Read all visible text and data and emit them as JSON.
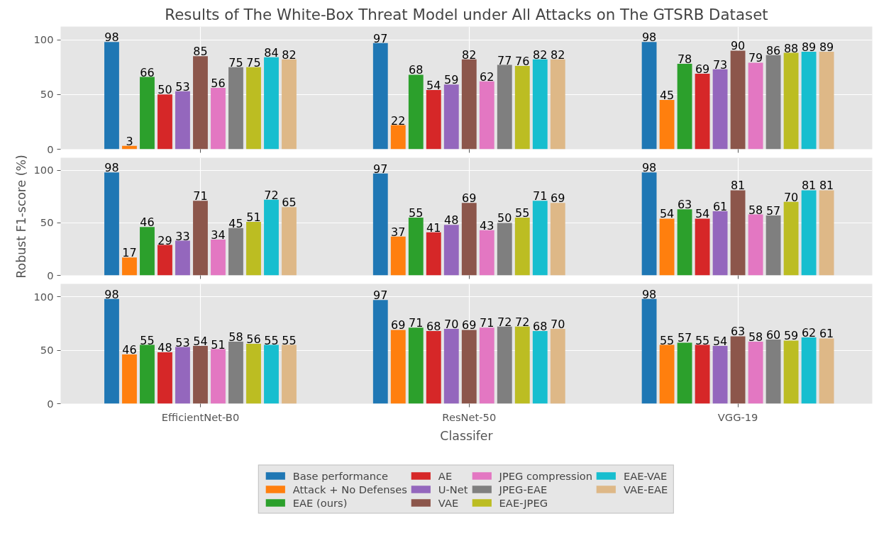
{
  "chart_data": [
    {
      "type": "bar",
      "title": "Results of The White-Box Threat Model under All Attacks on The GTSRB Dataset",
      "categories": [
        null,
        null,
        null
      ],
      "ylim": [
        0,
        112
      ],
      "yticks": [
        0,
        50,
        100
      ],
      "grid": true,
      "tick_labels": "y",
      "data_labels": true,
      "series": [
        {
          "color": "#1f77b4",
          "values": [
            98,
            97,
            98
          ]
        },
        {
          "color": "#ff7f0e",
          "values": [
            3,
            22,
            45
          ]
        },
        {
          "color": "#2ca02c",
          "values": [
            66,
            68,
            78
          ]
        },
        {
          "color": "#d62728",
          "values": [
            50,
            54,
            69
          ]
        },
        {
          "color": "#9467bd",
          "values": [
            53,
            59,
            73
          ]
        },
        {
          "color": "#8c564b",
          "values": [
            85,
            82,
            90
          ]
        },
        {
          "color": "#e377c2",
          "values": [
            56,
            62,
            79
          ]
        },
        {
          "color": "#7f7f7f",
          "values": [
            75,
            77,
            86
          ]
        },
        {
          "color": "#bcbd22",
          "values": [
            75,
            76,
            88
          ]
        },
        {
          "color": "#17becf",
          "values": [
            84,
            82,
            89
          ]
        },
        {
          "color": "#deb887",
          "values": [
            82,
            82,
            89
          ]
        }
      ]
    },
    {
      "type": "bar",
      "ylabel": "Robust F1-score (%)",
      "categories": [
        null,
        null,
        null
      ],
      "ylim": [
        0,
        112
      ],
      "yticks": [
        0,
        50,
        100
      ],
      "grid": true,
      "tick_labels": "y",
      "data_labels": true,
      "series": [
        {
          "color": "#1f77b4",
          "values": [
            98,
            97,
            98
          ]
        },
        {
          "color": "#ff7f0e",
          "values": [
            17,
            37,
            54
          ]
        },
        {
          "color": "#2ca02c",
          "values": [
            46,
            55,
            63
          ]
        },
        {
          "color": "#d62728",
          "values": [
            29,
            41,
            54
          ]
        },
        {
          "color": "#9467bd",
          "values": [
            33,
            48,
            61
          ]
        },
        {
          "color": "#8c564b",
          "values": [
            71,
            69,
            81
          ]
        },
        {
          "color": "#e377c2",
          "values": [
            34,
            43,
            58
          ]
        },
        {
          "color": "#7f7f7f",
          "values": [
            45,
            50,
            57
          ]
        },
        {
          "color": "#bcbd22",
          "values": [
            51,
            55,
            70
          ]
        },
        {
          "color": "#17becf",
          "values": [
            72,
            71,
            81
          ]
        },
        {
          "color": "#deb887",
          "values": [
            65,
            69,
            81
          ]
        }
      ]
    },
    {
      "type": "bar",
      "xlabel": "Classifer",
      "categories": [
        "EfficientNet-B0",
        "ResNet-50",
        "VGG-19"
      ],
      "ylim": [
        0,
        112
      ],
      "yticks": [
        0,
        50,
        100
      ],
      "grid": true,
      "data_labels": true,
      "legend": "bottom",
      "series": [
        {
          "name": "Base performance",
          "color": "#1f77b4",
          "values": [
            98,
            97,
            98
          ]
        },
        {
          "name": "Attack + No Defenses",
          "color": "#ff7f0e",
          "values": [
            46,
            69,
            55
          ]
        },
        {
          "name": "EAE (ours)",
          "color": "#2ca02c",
          "values": [
            55,
            71,
            57
          ]
        },
        {
          "name": "AE",
          "color": "#d62728",
          "values": [
            48,
            68,
            55
          ]
        },
        {
          "name": "U-Net",
          "color": "#9467bd",
          "values": [
            53,
            70,
            54
          ]
        },
        {
          "name": "VAE",
          "color": "#8c564b",
          "values": [
            54,
            69,
            63
          ]
        },
        {
          "name": "JPEG compression",
          "color": "#e377c2",
          "values": [
            51,
            71,
            58
          ]
        },
        {
          "name": "JPEG-EAE",
          "color": "#7f7f7f",
          "values": [
            58,
            72,
            60
          ]
        },
        {
          "name": "EAE-JPEG",
          "color": "#bcbd22",
          "values": [
            56,
            72,
            59
          ]
        },
        {
          "name": "EAE-VAE",
          "color": "#17becf",
          "values": [
            55,
            68,
            62
          ]
        },
        {
          "name": "VAE-EAE",
          "color": "#deb887",
          "values": [
            55,
            70,
            61
          ]
        }
      ]
    }
  ]
}
